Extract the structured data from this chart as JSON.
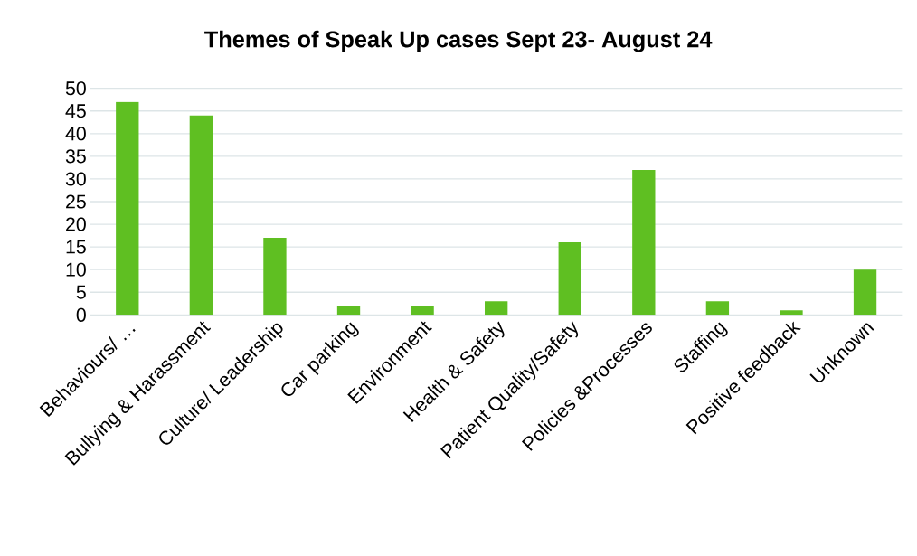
{
  "chart_data": {
    "type": "bar",
    "title": "Themes of Speak Up cases Sept 23- August 24",
    "categories": [
      "Behaviours/ …",
      "Bullying & Harassment",
      "Culture/ Leadership",
      "Car parking",
      "Environment",
      "Health & Safety",
      "Patient Quality/Safety",
      "Policies &Processes",
      "Staffing",
      "Positive feedback",
      "Unknown"
    ],
    "values": [
      47,
      44,
      17,
      2,
      2,
      3,
      16,
      32,
      3,
      1,
      10
    ],
    "color": "#5fbf22",
    "ylim": [
      0,
      50
    ],
    "yticks": [
      0,
      5,
      10,
      15,
      20,
      25,
      30,
      35,
      40,
      45,
      50
    ],
    "grid": "y"
  }
}
